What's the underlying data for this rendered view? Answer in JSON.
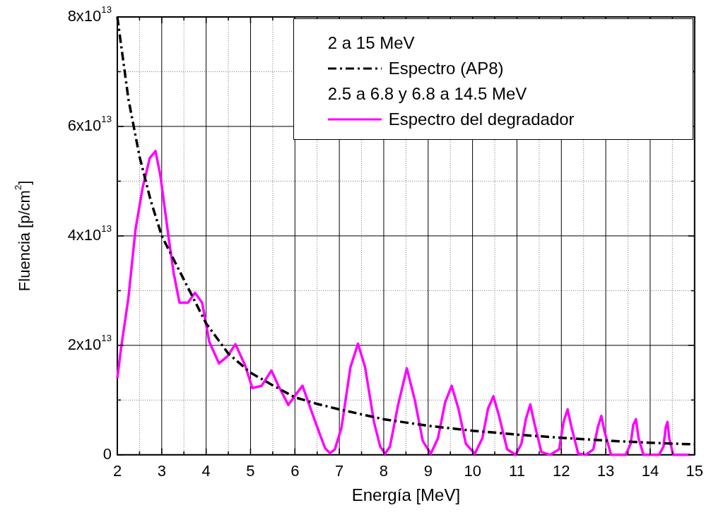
{
  "chart_data": {
    "type": "line",
    "xlabel": "Energía [MeV]",
    "ylabel": "Fluencia [p/cm$^{2}$]",
    "legend_title": "2 a 15 MeV",
    "annotations": [
      "2.5 a 6.8 y 6.8 a 14.5 MeV"
    ],
    "xlim": [
      2,
      15
    ],
    "ylim": [
      0,
      80000000000000.0
    ],
    "xticks": [
      2,
      {
        "value": 2.5,
        "label": null
      },
      3,
      {
        "value": 3.5,
        "label": null
      },
      4,
      {
        "value": 4.5,
        "label": null
      },
      5,
      {
        "value": 5.5,
        "label": null
      },
      6,
      {
        "value": 6.5,
        "label": null
      },
      7,
      {
        "value": 7.5,
        "label": null
      },
      8,
      {
        "value": 8.5,
        "label": null
      },
      9,
      {
        "value": 9.5,
        "label": null
      },
      10,
      {
        "value": 10.5,
        "label": null
      },
      11,
      {
        "value": 11.5,
        "label": null
      },
      12,
      {
        "value": 12.5,
        "label": null
      },
      13,
      {
        "value": 13.5,
        "label": null
      },
      14,
      {
        "value": 14.5,
        "label": null
      },
      15
    ],
    "yticks": [
      0,
      {
        "value": 10000000000000.0,
        "label": null
      },
      {
        "value": 20000000000000.0,
        "label": "2x10$^{13}$"
      },
      {
        "value": 30000000000000.0,
        "label": null
      },
      {
        "value": 40000000000000.0,
        "label": "4x10$^{13}$"
      },
      {
        "value": 50000000000000.0,
        "label": null
      },
      {
        "value": 60000000000000.0,
        "label": "6x10$^{13}$"
      },
      {
        "value": 70000000000000.0,
        "label": null
      },
      {
        "value": 80000000000000.0,
        "label": "8x10$^{13}$"
      }
    ],
    "grid": true,
    "legend": "top right",
    "marker": "none",
    "series": [
      {
        "name": "Espectro (AP8)",
        "color": "#000000",
        "line_style": "dashdot",
        "x": [
          2,
          2.25,
          2.5,
          2.75,
          3,
          3.5,
          4,
          4.5,
          5,
          5.5,
          6,
          6.5,
          7,
          8,
          9,
          10,
          11,
          12,
          13,
          14,
          15
        ],
        "values": [
          80000000000000.0,
          65000000000000.0,
          54500000000000.0,
          46500000000000.0,
          40000000000000.0,
          32000000000000.0,
          24000000000000.0,
          18500000000000.0,
          15000000000000.0,
          12700000000000.0,
          10500000000000.0,
          9300000000000.0,
          8300000000000.0,
          6500000000000.0,
          5300000000000.0,
          4400000000000.0,
          3700000000000.0,
          3100000000000.0,
          2600000000000.0,
          2200000000000.0,
          1900000000000.0
        ]
      },
      {
        "name": "Espectro del degradador",
        "color": "#ff00ff",
        "line_style": "solid",
        "x": [
          2,
          2.09,
          2.25,
          2.41,
          2.57,
          2.73,
          2.86,
          2.97,
          3.08,
          3.16,
          3.27,
          3.4,
          3.59,
          3.75,
          3.91,
          4.07,
          4.29,
          4.48,
          4.66,
          4.88,
          5.04,
          5.25,
          5.47,
          5.63,
          5.85,
          6.01,
          6.17,
          6.38,
          6.55,
          6.68,
          6.79,
          6.9,
          7.05,
          7.25,
          7.42,
          7.58,
          7.78,
          7.92,
          8.03,
          8.14,
          8.32,
          8.52,
          8.7,
          8.88,
          9.06,
          9.22,
          9.38,
          9.53,
          9.68,
          9.85,
          10.05,
          10.22,
          10.35,
          10.47,
          10.6,
          10.78,
          10.97,
          11.1,
          11.2,
          11.3,
          11.4,
          11.55,
          11.75,
          11.95,
          12.05,
          12.14,
          12.23,
          12.38,
          12.55,
          12.72,
          12.82,
          12.9,
          12.98,
          13.12,
          13.45,
          13.56,
          13.62,
          13.68,
          13.74,
          13.85,
          14.2,
          14.3,
          14.35,
          14.39,
          14.43,
          14.52,
          14.9
        ],
        "values": [
          14000000000000.0,
          19800000000000.0,
          28700000000000.0,
          41200000000000.0,
          48800000000000.0,
          54200000000000.0,
          55500000000000.0,
          51000000000000.0,
          44300000000000.0,
          39400000000000.0,
          33200000000000.0,
          27800000000000.0,
          27800000000000.0,
          29600000000000.0,
          27800000000000.0,
          20700000000000.0,
          16700000000000.0,
          18000000000000.0,
          20200000000000.0,
          16300000000000.0,
          12200000000000.0,
          12600000000000.0,
          15400000000000.0,
          12600000000000.0,
          9100000000000.0,
          10900000000000.0,
          12600000000000.0,
          7800000000000.0,
          4000000000000.0,
          1200000000000.0,
          300000000000.0,
          1000000000000.0,
          5000000000000.0,
          16000000000000.0,
          20300000000000.0,
          16000000000000.0,
          6000000000000.0,
          1500000000000.0,
          200000000000.0,
          1500000000000.0,
          9000000000000.0,
          15800000000000.0,
          10000000000000.0,
          2500000000000.0,
          200000000000.0,
          3000000000000.0,
          9500000000000.0,
          12600000000000.0,
          8500000000000.0,
          2000000000000.0,
          200000000000.0,
          3000000000000.0,
          8500000000000.0,
          10700000000000.0,
          7000000000000.0,
          1000000000000.0,
          0,
          2000000000000.0,
          6500000000000.0,
          9200000000000.0,
          5500000000000.0,
          500000000000.0,
          0,
          1000000000000.0,
          6000000000000.0,
          8300000000000.0,
          5000000000000.0,
          200000000000.0,
          0,
          1000000000000.0,
          5000000000000.0,
          7100000000000.0,
          4000000000000.0,
          0,
          0,
          2000000000000.0,
          5500000000000.0,
          6500000000000.0,
          3000000000000.0,
          0,
          0,
          1500000000000.0,
          5000000000000.0,
          6000000000000.0,
          3000000000000.0,
          0,
          0
        ]
      }
    ]
  }
}
